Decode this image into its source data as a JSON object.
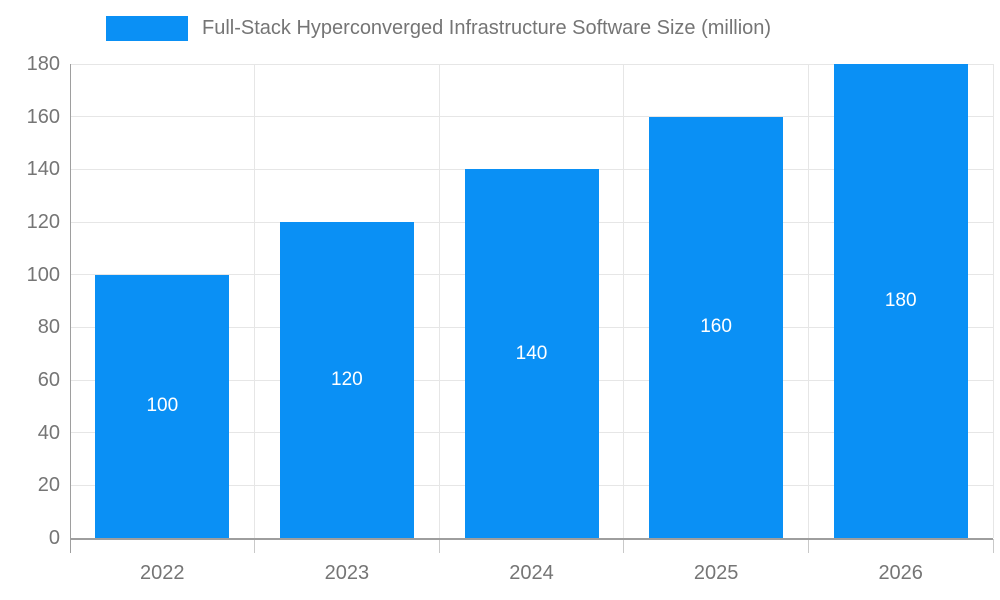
{
  "chart_data": {
    "type": "bar",
    "categories": [
      "2022",
      "2023",
      "2024",
      "2025",
      "2026"
    ],
    "values": [
      100,
      120,
      140,
      160,
      180
    ],
    "series_name": "Full-Stack Hyperconverged Infrastructure Software Size (million)",
    "title": "",
    "xlabel": "",
    "ylabel": "",
    "ylim": [
      0,
      180
    ],
    "ytick_step": 20,
    "ytick_labels": [
      "0",
      "20",
      "40",
      "60",
      "80",
      "100",
      "120",
      "140",
      "160",
      "180"
    ],
    "bar_value_labels": [
      "100",
      "120",
      "140",
      "160",
      "180"
    ],
    "grid": true,
    "legend_position": "top",
    "colors": {
      "bar": "#0A90F5",
      "bar_value_text": "#ffffff",
      "axis_text": "#757575",
      "legend_text": "#757575",
      "gridline": "#e6e6e6",
      "axis_line": "#9e9e9e",
      "boundary_tick": "#c9c9c9",
      "background": "#ffffff"
    }
  }
}
